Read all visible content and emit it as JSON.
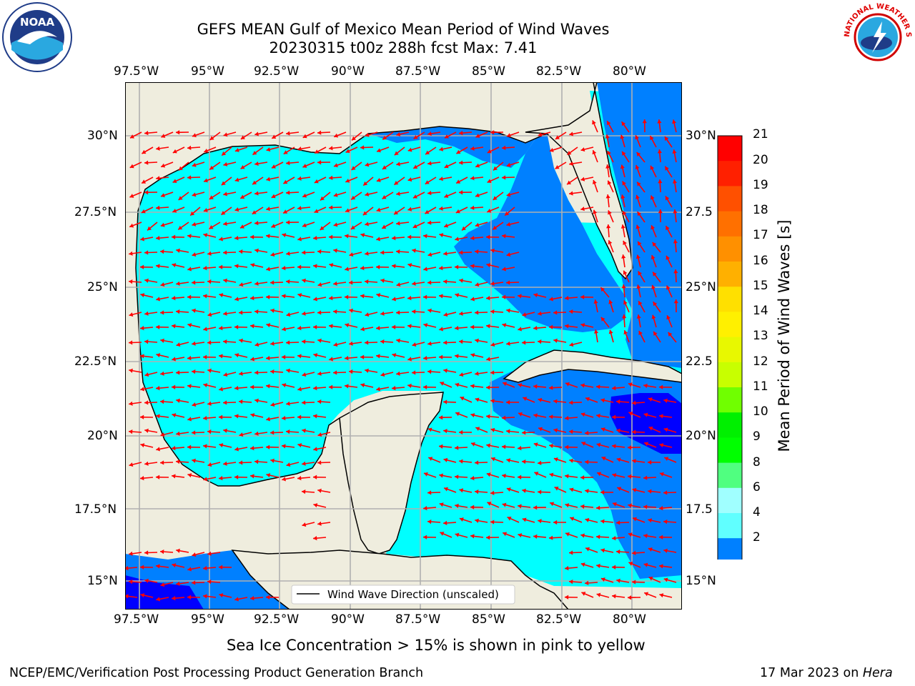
{
  "header": {
    "title_line1": "GEFS MEAN Gulf of Mexico Mean Period of Wind Waves",
    "title_line2": "20230315 t00z 288h fcst   Max: 7.41",
    "noaa_logo_text": "NOAA",
    "nws_logo_text": "NATIONAL WEATHER SERVICE"
  },
  "map": {
    "lon_ticks": [
      "97.5°W",
      "95°W",
      "92.5°W",
      "90°W",
      "87.5°W",
      "85°W",
      "82.5°W",
      "80°W"
    ],
    "lat_ticks_left": [
      "30°N",
      "27.5°N",
      "25°N",
      "22.5°N",
      "20°N",
      "17.5°N",
      "15°N"
    ],
    "lat_ticks_right": [
      "30°N",
      "27.5",
      "25°N",
      "22.5",
      "20°N",
      "17.5",
      "15°N"
    ],
    "legend_label": "Wind Wave Direction (unscaled)",
    "colors": {
      "land": "#efedde",
      "ocean_4_6": "#00ffff",
      "ocean_2_4": "#0080ff",
      "ocean_lt2": "#0000ff",
      "arrow": "#ff0000",
      "grid": "#b0b0b0"
    }
  },
  "colorbar": {
    "label": "Mean Period of Wind Waves [s]",
    "ticks": [
      "21",
      "20",
      "19",
      "18",
      "17",
      "16",
      "15",
      "14",
      "13",
      "12",
      "11",
      "10",
      "9",
      "8",
      "6",
      "4",
      "2"
    ],
    "colors": [
      "#ff0000",
      "#ff2000",
      "#ff5000",
      "#ff7000",
      "#ff9000",
      "#ffb000",
      "#ffe000",
      "#fff000",
      "#e8f800",
      "#c8ff00",
      "#70ff00",
      "#00f000",
      "#00ff00",
      "#50ff80",
      "#a0ffff",
      "#60ffff",
      "#00ffff",
      "#0080ff"
    ],
    "under_color": "#0000ff"
  },
  "caption": "Sea Ice Concentration > 15% is shown in pink to yellow",
  "footer": {
    "left": "NCEP/EMC/Verification Post Processing Product Generation Branch",
    "date": "17 Mar 2023 on ",
    "host": "Hera"
  }
}
